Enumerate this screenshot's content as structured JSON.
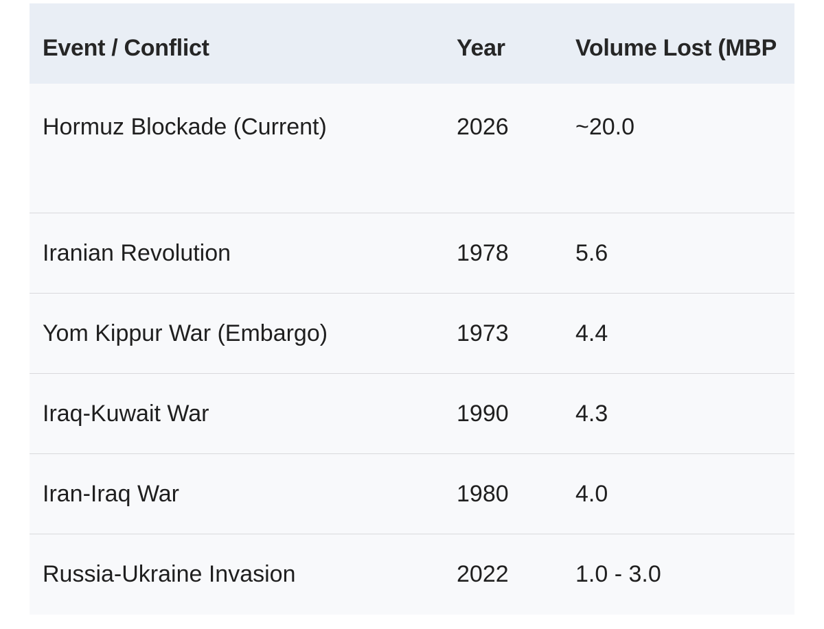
{
  "table": {
    "header": [
      "Event / Conflict",
      "Year",
      "Volume Lost (MBP"
    ],
    "rows": [
      [
        "Hormuz Blockade (Current)",
        "2026",
        "~20.0"
      ],
      [
        "Iranian Revolution",
        "1978",
        "5.6"
      ],
      [
        "Yom Kippur War (Embargo)",
        "1973",
        "4.4"
      ],
      [
        "Iraq-Kuwait War",
        "1990",
        "4.3"
      ],
      [
        "Iran-Iraq War",
        "1980",
        "4.0"
      ],
      [
        "Russia-Ukraine Invasion",
        "2022",
        "1.0 - 3.0"
      ]
    ]
  }
}
